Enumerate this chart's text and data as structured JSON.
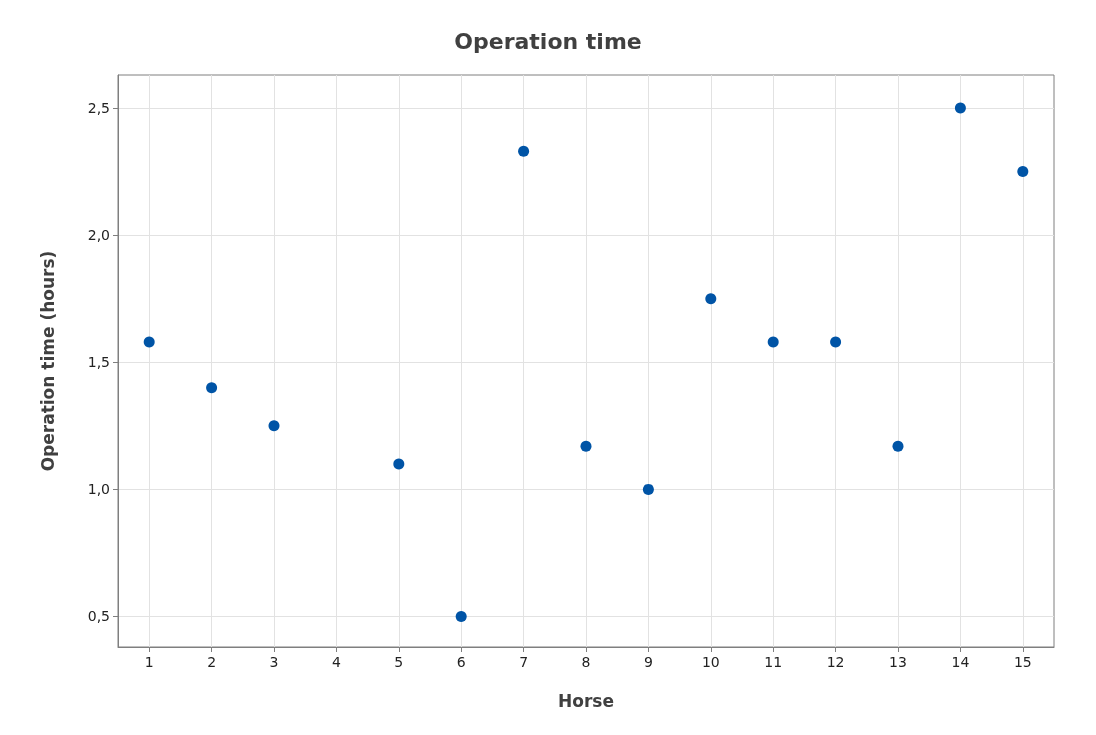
{
  "chart_data": {
    "type": "scatter",
    "title": "Operation time",
    "xlabel": "Horse",
    "ylabel": "Operation time (hours)",
    "x": [
      1,
      2,
      3,
      4,
      5,
      6,
      7,
      8,
      9,
      10,
      11,
      12,
      13,
      14,
      15
    ],
    "series": [
      {
        "color": "#0054a6",
        "values": [
          1.58,
          1.4,
          1.25,
          null,
          1.1,
          0.5,
          2.33,
          1.17,
          1.0,
          1.75,
          1.58,
          1.58,
          1.17,
          2.5,
          2.25
        ]
      }
    ],
    "xlim": [
      0.5,
      15.5
    ],
    "xticks": [
      1,
      2,
      3,
      4,
      5,
      6,
      7,
      8,
      9,
      10,
      11,
      12,
      13,
      14,
      15
    ],
    "ylim": [
      0.38,
      2.63
    ],
    "yticks": [
      {
        "value": 0.5,
        "label": "0,5"
      },
      {
        "value": 1.0,
        "label": "1,0"
      },
      {
        "value": 1.5,
        "label": "1,5"
      },
      {
        "value": 2.0,
        "label": "2,0"
      },
      {
        "value": 2.5,
        "label": "2,5"
      }
    ],
    "grid": true,
    "marker": "circle"
  }
}
